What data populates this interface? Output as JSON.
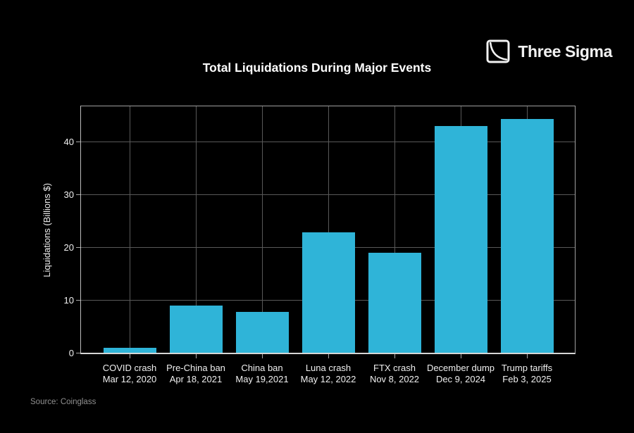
{
  "page": {
    "background": "#000000"
  },
  "brand": {
    "name": "Three Sigma",
    "icon": "decay-curve-square-icon"
  },
  "chart_data": {
    "type": "bar",
    "title": "Total Liquidations During Major Events",
    "xlabel": "",
    "ylabel": "Liquidations (Billions $)",
    "categories": [
      {
        "event": "COVID crash",
        "date": "Mar 12, 2020"
      },
      {
        "event": "Pre-China ban",
        "date": "Apr 18, 2021"
      },
      {
        "event": "China ban",
        "date": "May 19,2021"
      },
      {
        "event": "Luna crash",
        "date": "May 12, 2022"
      },
      {
        "event": "FTX crash",
        "date": "Nov 8, 2022"
      },
      {
        "event": "December dump",
        "date": "Dec 9, 2024"
      },
      {
        "event": "Trump tariffs",
        "date": "Feb 3, 2025"
      }
    ],
    "values": [
      1.0,
      9.0,
      7.8,
      22.8,
      19.0,
      43.0,
      44.3
    ],
    "yticks": [
      0,
      10,
      20,
      30,
      40
    ],
    "ylim": [
      0,
      47.1
    ],
    "grid": true,
    "legend": "none",
    "colors": {
      "bar": "#2fb4d8",
      "grid": "#595959",
      "axis": "#a8a8a8",
      "tick_text": "#f0f0f0",
      "muted_text": "#8f8f8f",
      "background": "#000000"
    }
  },
  "footer": {
    "source": "Source: Coinglass"
  }
}
